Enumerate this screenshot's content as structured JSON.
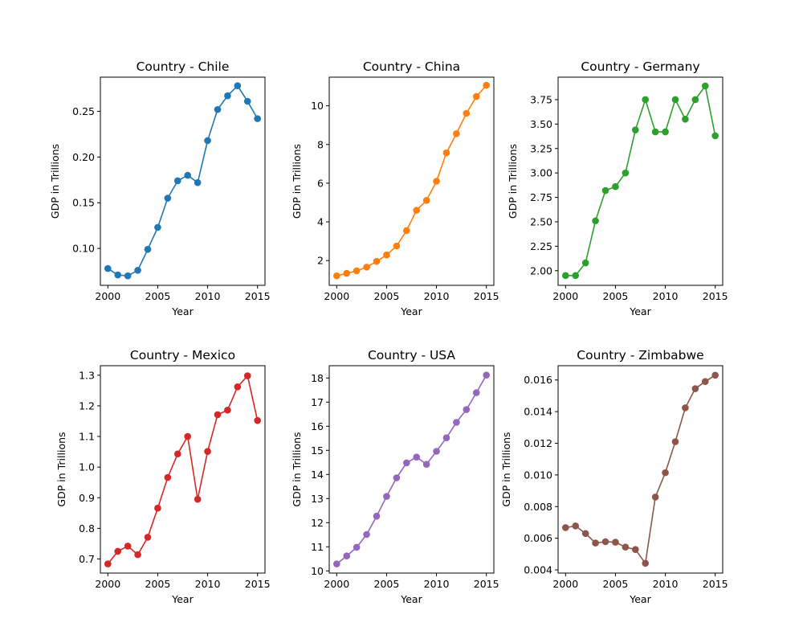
{
  "chart_data": [
    {
      "type": "line",
      "title": "Country - Chile",
      "xlabel": "Year",
      "ylabel": "GDP in Trillions",
      "color": "#1f77b4",
      "xlim": [
        1999.25,
        2015.75
      ],
      "ylim": [
        0.0596,
        0.2874
      ],
      "xticks": [
        2000,
        2005,
        2010,
        2015
      ],
      "yticks": [
        0.1,
        0.15,
        0.2,
        0.25
      ],
      "ytick_labels": [
        "0.10",
        "0.15",
        "0.20",
        "0.25"
      ],
      "series": [
        {
          "x": [
            2000,
            2001,
            2002,
            2003,
            2004,
            2005,
            2006,
            2007,
            2008,
            2009,
            2010,
            2011,
            2012,
            2013,
            2014,
            2015
          ],
          "y": [
            0.078,
            0.071,
            0.07,
            0.076,
            0.099,
            0.123,
            0.155,
            0.174,
            0.18,
            0.172,
            0.218,
            0.252,
            0.267,
            0.278,
            0.261,
            0.242
          ]
        }
      ]
    },
    {
      "type": "line",
      "title": "Country - China",
      "xlabel": "Year",
      "ylabel": "GDP in Trillions",
      "color": "#ff7f0e",
      "xlim": [
        1999.25,
        2015.75
      ],
      "ylim": [
        0.72,
        11.48
      ],
      "xticks": [
        2000,
        2005,
        2010,
        2015
      ],
      "yticks": [
        2,
        4,
        6,
        8,
        10
      ],
      "ytick_labels": [
        "2",
        "4",
        "6",
        "8",
        "10"
      ],
      "series": [
        {
          "x": [
            2000,
            2001,
            2002,
            2003,
            2004,
            2005,
            2006,
            2007,
            2008,
            2009,
            2010,
            2011,
            2012,
            2013,
            2014,
            2015
          ],
          "y": [
            1.21,
            1.34,
            1.47,
            1.66,
            1.96,
            2.29,
            2.75,
            3.55,
            4.6,
            5.11,
            6.1,
            7.57,
            8.56,
            9.61,
            10.48,
            11.06
          ]
        }
      ]
    },
    {
      "type": "line",
      "title": "Country - Germany",
      "xlabel": "Year",
      "ylabel": "GDP in Trillions",
      "color": "#2ca02c",
      "xlim": [
        1999.25,
        2015.75
      ],
      "ylim": [
        1.85,
        3.98
      ],
      "xticks": [
        2000,
        2005,
        2010,
        2015
      ],
      "yticks": [
        2.0,
        2.25,
        2.5,
        2.75,
        3.0,
        3.25,
        3.5,
        3.75
      ],
      "ytick_labels": [
        "2.00",
        "2.25",
        "2.50",
        "2.75",
        "3.00",
        "3.25",
        "3.50",
        "3.75"
      ],
      "series": [
        {
          "x": [
            2000,
            2001,
            2002,
            2003,
            2004,
            2005,
            2006,
            2007,
            2008,
            2009,
            2010,
            2011,
            2012,
            2013,
            2014,
            2015
          ],
          "y": [
            1.95,
            1.95,
            2.08,
            2.51,
            2.82,
            2.86,
            3.0,
            3.44,
            3.75,
            3.42,
            3.42,
            3.75,
            3.55,
            3.75,
            3.89,
            3.38
          ]
        }
      ]
    },
    {
      "type": "line",
      "title": "Country - Mexico",
      "xlabel": "Year",
      "ylabel": "GDP in Trillions",
      "color": "#d62728",
      "xlim": [
        1999.25,
        2015.75
      ],
      "ylim": [
        0.654,
        1.331
      ],
      "xticks": [
        2000,
        2005,
        2010,
        2015
      ],
      "yticks": [
        0.7,
        0.8,
        0.9,
        1.0,
        1.1,
        1.2,
        1.3
      ],
      "ytick_labels": [
        "0.7",
        "0.8",
        "0.9",
        "1.0",
        "1.1",
        "1.2",
        "1.3"
      ],
      "series": [
        {
          "x": [
            2000,
            2001,
            2002,
            2003,
            2004,
            2005,
            2006,
            2007,
            2008,
            2009,
            2010,
            2011,
            2012,
            2013,
            2014,
            2015
          ],
          "y": [
            0.684,
            0.725,
            0.742,
            0.714,
            0.771,
            0.866,
            0.966,
            1.043,
            1.1,
            0.895,
            1.051,
            1.171,
            1.186,
            1.262,
            1.298,
            1.152
          ]
        }
      ]
    },
    {
      "type": "line",
      "title": "Country - USA",
      "xlabel": "Year",
      "ylabel": "GDP in Trillions",
      "color": "#9467bd",
      "xlim": [
        1999.25,
        2015.75
      ],
      "ylim": [
        9.91,
        18.51
      ],
      "xticks": [
        2000,
        2005,
        2010,
        2015
      ],
      "yticks": [
        10,
        11,
        12,
        13,
        14,
        15,
        16,
        17,
        18
      ],
      "ytick_labels": [
        "10",
        "11",
        "12",
        "13",
        "14",
        "15",
        "16",
        "17",
        "18"
      ],
      "series": [
        {
          "x": [
            2000,
            2001,
            2002,
            2003,
            2004,
            2005,
            2006,
            2007,
            2008,
            2009,
            2010,
            2011,
            2012,
            2013,
            2014,
            2015
          ],
          "y": [
            10.29,
            10.62,
            10.98,
            11.51,
            12.27,
            13.09,
            13.86,
            14.48,
            14.72,
            14.42,
            14.96,
            15.52,
            16.16,
            16.69,
            17.39,
            18.12
          ]
        }
      ]
    },
    {
      "type": "line",
      "title": "Country - Zimbabwe",
      "xlabel": "Year",
      "ylabel": "GDP in Trillions",
      "color": "#8c564b",
      "xlim": [
        1999.25,
        2015.75
      ],
      "ylim": [
        0.0038,
        0.0169
      ],
      "xticks": [
        2000,
        2005,
        2010,
        2015
      ],
      "yticks": [
        0.004,
        0.006,
        0.008,
        0.01,
        0.012,
        0.014,
        0.016
      ],
      "ytick_labels": [
        "0.004",
        "0.006",
        "0.008",
        "0.010",
        "0.012",
        "0.014",
        "0.016"
      ],
      "series": [
        {
          "x": [
            2000,
            2001,
            2002,
            2003,
            2004,
            2005,
            2006,
            2007,
            2008,
            2009,
            2010,
            2011,
            2012,
            2013,
            2014,
            2015
          ],
          "y": [
            0.00667,
            0.00678,
            0.0063,
            0.0057,
            0.00578,
            0.00575,
            0.00544,
            0.00529,
            0.00442,
            0.0086,
            0.01014,
            0.0121,
            0.01424,
            0.01545,
            0.0159,
            0.0163
          ]
        }
      ]
    }
  ]
}
